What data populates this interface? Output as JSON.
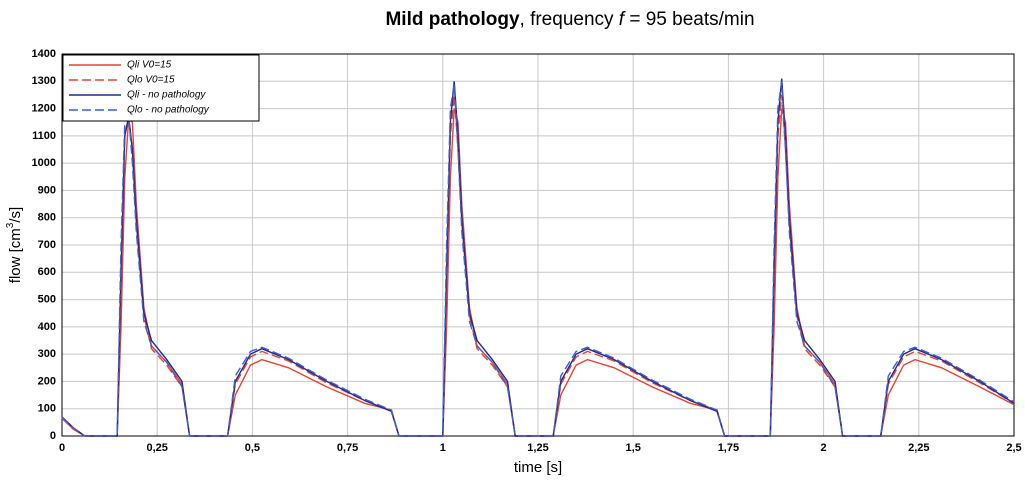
{
  "chart_data": {
    "type": "line",
    "title_segments": [
      "Mild pathology",
      ", frequency ",
      "f",
      " = 95 beats/min"
    ],
    "ylabel_segments": [
      "flow [cm",
      "3",
      "/s]"
    ],
    "xlabel": "time [s]",
    "x": [
      0,
      0.03,
      0.06,
      0.145,
      0.155,
      0.165,
      0.175,
      0.185,
      0.195,
      0.215,
      0.235,
      0.275,
      0.315,
      0.335,
      0.435,
      0.455,
      0.495,
      0.525,
      0.595,
      0.695,
      0.795,
      0.865,
      0.885,
      1.0,
      1.01,
      1.02,
      1.03,
      1.04,
      1.05,
      1.07,
      1.09,
      1.13,
      1.17,
      1.19,
      1.29,
      1.31,
      1.35,
      1.38,
      1.45,
      1.55,
      1.65,
      1.72,
      1.74,
      1.86,
      1.87,
      1.88,
      1.89,
      1.9,
      1.91,
      1.93,
      1.95,
      1.99,
      2.03,
      2.05,
      2.15,
      2.17,
      2.21,
      2.24,
      2.31,
      2.41,
      2.5
    ],
    "series": [
      {
        "name": "Qli V0=15",
        "color": "#e8432e",
        "dashed": false,
        "values": [
          65,
          25,
          0,
          0,
          400,
          950,
          1160,
          1150,
          850,
          470,
          330,
          270,
          190,
          0,
          0,
          150,
          260,
          280,
          250,
          180,
          120,
          95,
          0,
          0,
          400,
          950,
          1200,
          1150,
          850,
          470,
          330,
          270,
          190,
          0,
          0,
          150,
          260,
          280,
          250,
          180,
          120,
          95,
          0,
          0,
          400,
          950,
          1200,
          1150,
          850,
          470,
          330,
          270,
          190,
          0,
          0,
          150,
          260,
          280,
          250,
          180,
          115
        ]
      },
      {
        "name": "Qlo V0=15",
        "color": "#e8432e",
        "dashed": true,
        "values": [
          65,
          25,
          0,
          0,
          650,
          1100,
          1170,
          1050,
          780,
          440,
          320,
          260,
          180,
          0,
          0,
          190,
          290,
          310,
          275,
          195,
          130,
          95,
          0,
          0,
          650,
          1100,
          1250,
          1050,
          780,
          440,
          320,
          260,
          180,
          0,
          0,
          190,
          290,
          310,
          275,
          195,
          130,
          95,
          0,
          0,
          650,
          1100,
          1250,
          1050,
          780,
          440,
          320,
          260,
          180,
          0,
          0,
          190,
          290,
          310,
          275,
          195,
          120
        ]
      },
      {
        "name": "Qli - no pathology",
        "color": "#1f2a8c",
        "dashed": false,
        "values": [
          70,
          30,
          0,
          0,
          600,
          1100,
          1170,
          1050,
          800,
          450,
          350,
          280,
          200,
          0,
          0,
          200,
          300,
          320,
          280,
          200,
          130,
          90,
          0,
          0,
          600,
          1150,
          1300,
          1100,
          800,
          450,
          350,
          280,
          200,
          0,
          0,
          200,
          300,
          320,
          280,
          200,
          130,
          90,
          0,
          0,
          600,
          1150,
          1310,
          1100,
          800,
          450,
          350,
          280,
          200,
          0,
          0,
          200,
          300,
          320,
          280,
          200,
          120
        ]
      },
      {
        "name": "Qlo - no pathology",
        "color": "#3a5fd8",
        "dashed": true,
        "values": [
          70,
          30,
          0,
          0,
          700,
          1150,
          1180,
          1000,
          750,
          420,
          330,
          270,
          180,
          0,
          0,
          220,
          310,
          325,
          285,
          205,
          135,
          95,
          0,
          0,
          700,
          1200,
          1290,
          1050,
          750,
          420,
          330,
          270,
          180,
          0,
          0,
          220,
          310,
          325,
          285,
          205,
          135,
          95,
          0,
          0,
          700,
          1200,
          1300,
          1050,
          750,
          420,
          330,
          270,
          180,
          0,
          0,
          220,
          310,
          325,
          285,
          205,
          125
        ]
      }
    ],
    "xlim": [
      0,
      2.5
    ],
    "xticks": [
      0,
      {
        "value": 0.25,
        "label": "0,25"
      },
      {
        "value": 0.5,
        "label": "0,5"
      },
      {
        "value": 0.75,
        "label": "0,75"
      },
      1,
      {
        "value": 1.25,
        "label": "1,25"
      },
      {
        "value": 1.5,
        "label": "1,5"
      },
      {
        "value": 1.75,
        "label": "1,75"
      },
      2,
      {
        "value": 2.25,
        "label": "2,25"
      },
      {
        "value": 2.5,
        "label": "2,5"
      }
    ],
    "ylim": [
      0,
      1400
    ],
    "yticks": [
      0,
      100,
      200,
      300,
      400,
      500,
      600,
      700,
      800,
      900,
      1000,
      1100,
      1200,
      1300,
      1400
    ],
    "grid": true,
    "legend": "upper left"
  }
}
